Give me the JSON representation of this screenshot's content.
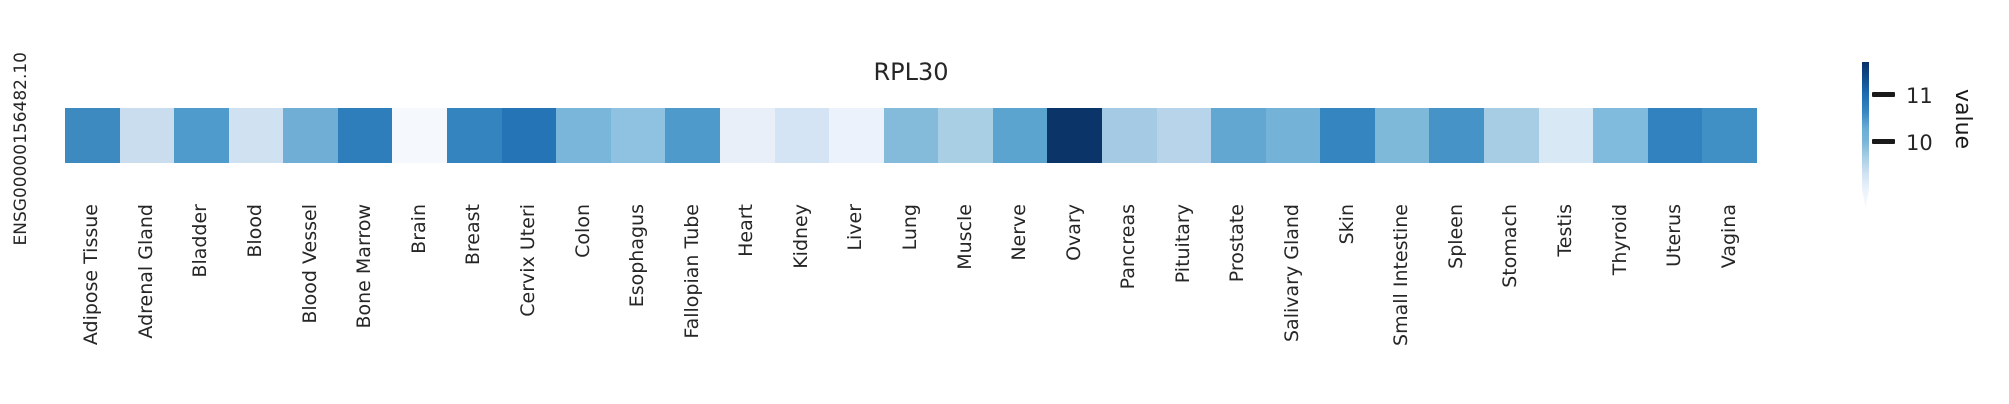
{
  "figure": {
    "title": "RPL30",
    "row_label": "ENSG00000156482.10"
  },
  "legend": {
    "label": "value",
    "ticks": [
      "11",
      "10"
    ]
  },
  "chart_data": {
    "type": "heatmap",
    "title": "RPL30",
    "row_label": "ENSG00000156482.10",
    "rows": [
      "ENSG00000156482.10"
    ],
    "categories": [
      "Adipose Tissue",
      "Adrenal Gland",
      "Bladder",
      "Blood",
      "Blood Vessel",
      "Bone Marrow",
      "Brain",
      "Breast",
      "Cervix Uteri",
      "Colon",
      "Esophagus",
      "Fallopian Tube",
      "Heart",
      "Kidney",
      "Liver",
      "Lung",
      "Muscle",
      "Nerve",
      "Ovary",
      "Pancreas",
      "Pituitary",
      "Prostate",
      "Salivary Gland",
      "Skin",
      "Small Intestine",
      "Spleen",
      "Stomach",
      "Testis",
      "Thyroid",
      "Uterus",
      "Vagina"
    ],
    "values": [
      10.6,
      9.3,
      10.4,
      9.2,
      10.05,
      10.85,
      8.6,
      10.7,
      10.95,
      9.95,
      9.8,
      10.4,
      8.85,
      9.15,
      8.8,
      9.85,
      9.55,
      10.25,
      11.7,
      9.6,
      9.45,
      10.2,
      10.0,
      10.7,
      9.9,
      10.5,
      9.6,
      9.0,
      9.9,
      10.75,
      10.5
    ],
    "cell_colors": [
      "#3d8ac1",
      "#c9ddef",
      "#4f9bcb",
      "#d0e2f2",
      "#70aed5",
      "#2e7ebc",
      "#f5f9fd",
      "#3484bf",
      "#2474b6",
      "#7ab6d9",
      "#8fc1e0",
      "#4e9acb",
      "#e8eff9",
      "#d4e4f4",
      "#ebf2fb",
      "#84bbdb",
      "#a9cfe5",
      "#5ca4d0",
      "#0b3468",
      "#a4cbe3",
      "#b7d4ea",
      "#61a7d2",
      "#74b2d8",
      "#3585c0",
      "#7fb9da",
      "#4593c7",
      "#a6cde4",
      "#d9e8f5",
      "#80badc",
      "#3282bf",
      "#4190c5"
    ],
    "colorbar": {
      "label": "value",
      "tick_values": [
        11,
        10
      ],
      "value_range_estimate": [
        8.5,
        11.7
      ],
      "colormap": "Blues",
      "color_low": "#f7fbff",
      "color_high": "#08306b",
      "position": "right"
    },
    "layout": {
      "x_tick_label_rotation": 90,
      "grid": false,
      "background": "#ffffff",
      "text_color": "#262626"
    }
  }
}
